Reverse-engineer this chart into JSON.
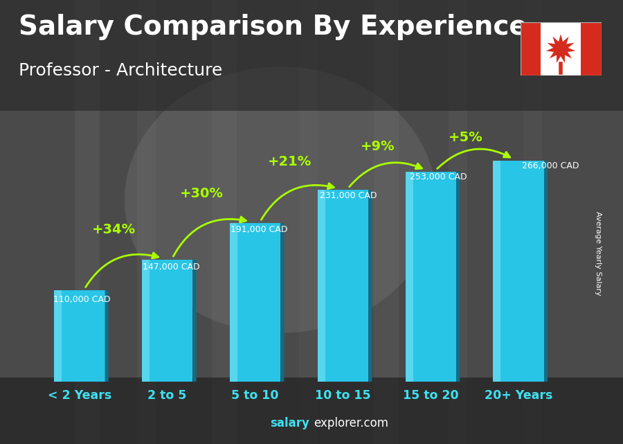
{
  "title": "Salary Comparison By Experience",
  "subtitle": "Professor - Architecture",
  "categories": [
    "< 2 Years",
    "2 to 5",
    "5 to 10",
    "10 to 15",
    "15 to 20",
    "20+ Years"
  ],
  "values": [
    110000,
    147000,
    191000,
    231000,
    253000,
    266000
  ],
  "labels": [
    "110,000 CAD",
    "147,000 CAD",
    "191,000 CAD",
    "231,000 CAD",
    "253,000 CAD",
    "266,000 CAD"
  ],
  "pct_labels": [
    "+34%",
    "+30%",
    "+21%",
    "+9%",
    "+5%"
  ],
  "bar_color_face": "#29c5e6",
  "bar_color_light": "#5dd8f0",
  "bar_color_dark": "#1a9ab8",
  "bar_color_right": "#0f6e87",
  "bg_gray": "#6b6b6b",
  "text_color_white": "#ffffff",
  "text_color_cyan": "#40e0f0",
  "text_color_green": "#aaff00",
  "ylabel": "Average Yearly Salary",
  "footer_bold": "salary",
  "footer_reg": "explorer.com",
  "ylim_max": 310000,
  "title_fontsize": 28,
  "subtitle_fontsize": 18,
  "bar_width": 0.58,
  "flag_red": "#d52b1e",
  "label_color_white": "#ffffff"
}
